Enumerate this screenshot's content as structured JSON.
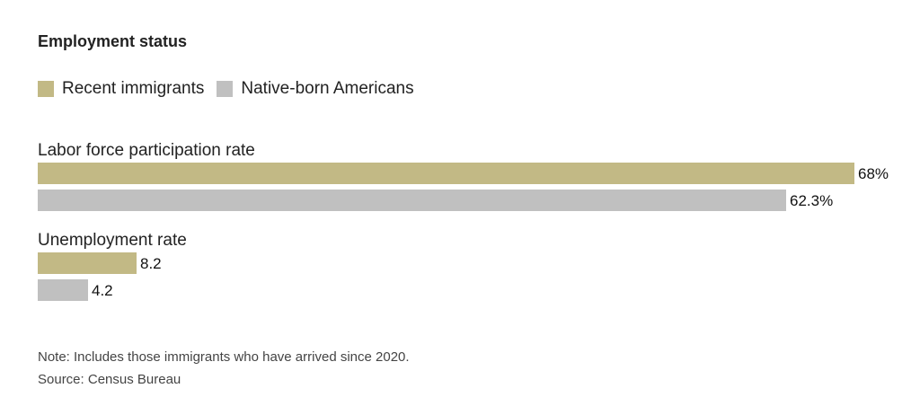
{
  "colors": {
    "recent": "#c2b985",
    "native": "#c0c0c0"
  },
  "chart_data": {
    "type": "bar",
    "orientation": "horizontal",
    "title": "Employment status",
    "legend": [
      {
        "name": "Recent immigrants",
        "color": "#c2b985"
      },
      {
        "name": "Native-born Americans",
        "color": "#c0c0c0"
      }
    ],
    "legend_position": "top-left",
    "categories": [
      {
        "label": "Labor force participation rate",
        "bars": [
          {
            "series": "Recent immigrants",
            "value": 68,
            "label": "68%"
          },
          {
            "series": "Native-born Americans",
            "value": 62.3,
            "label": "62.3%"
          }
        ]
      },
      {
        "label": "Unemployment rate",
        "bars": [
          {
            "series": "Recent immigrants",
            "value": 8.2,
            "label": "8.2"
          },
          {
            "series": "Native-born Americans",
            "value": 4.2,
            "label": "4.2"
          }
        ]
      }
    ],
    "xlim": [
      0,
      68
    ],
    "grid": false
  },
  "note": "Note: Includes those immigrants who have arrived since 2020.",
  "source": "Source: Census Bureau"
}
